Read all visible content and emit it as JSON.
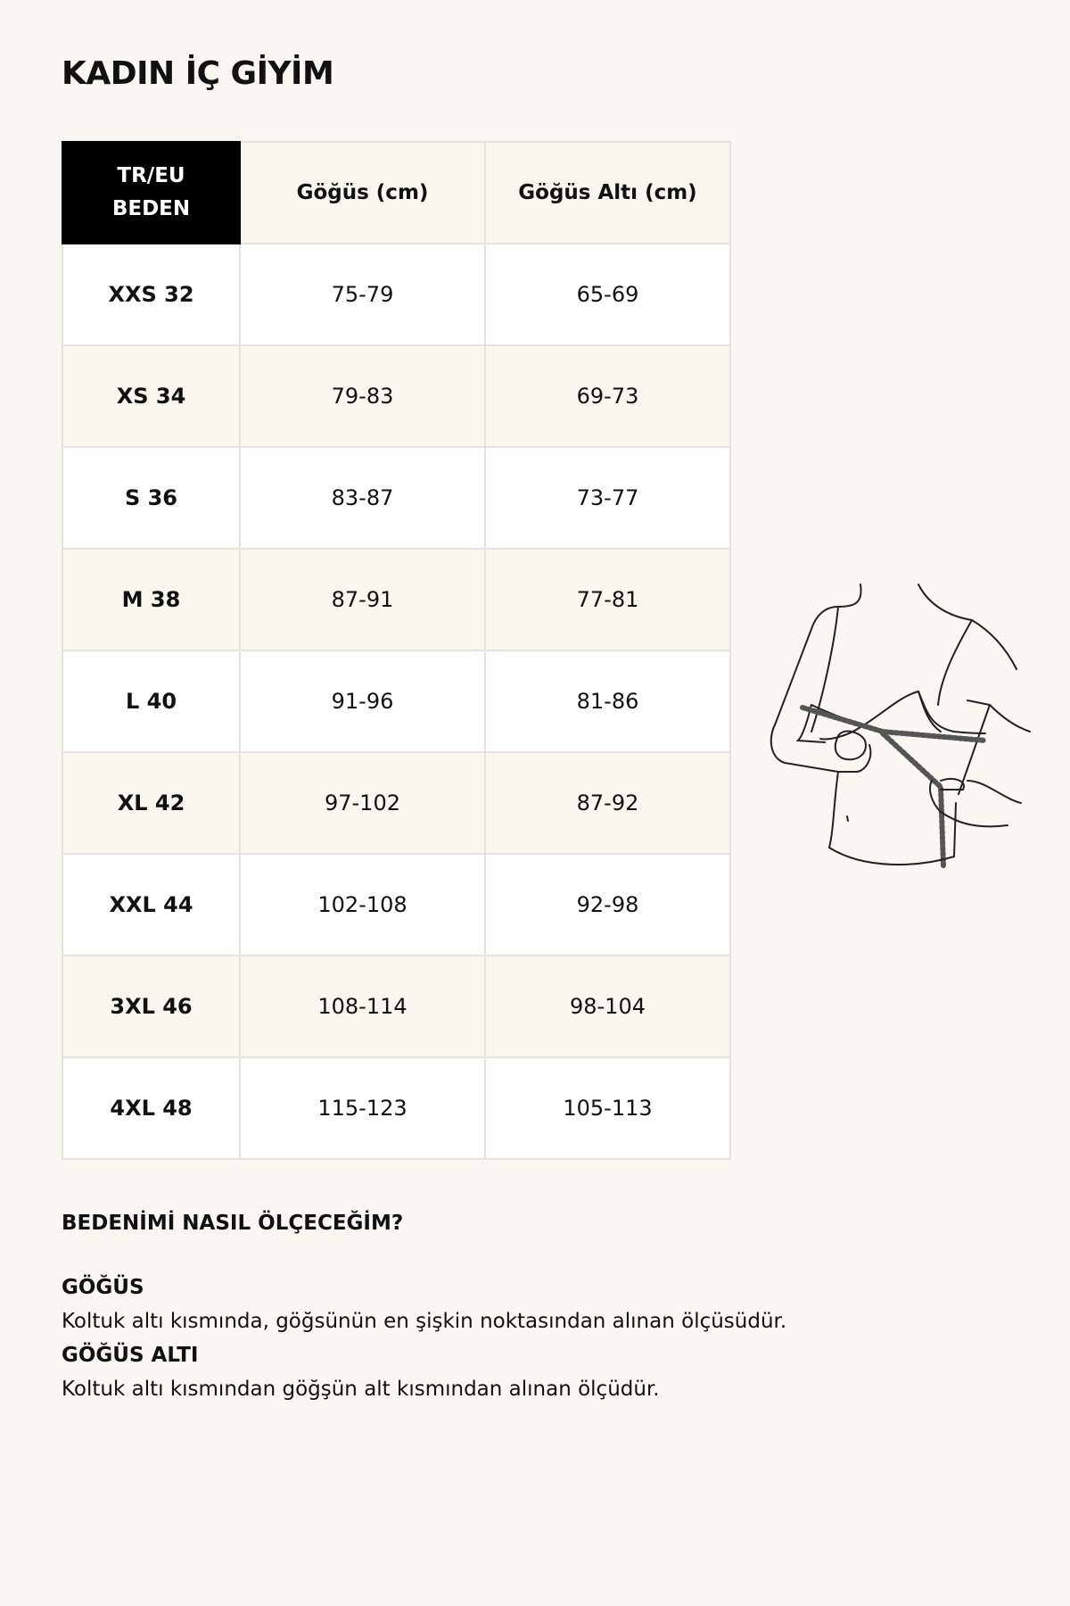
{
  "title": "KADIN İÇ GİYİM",
  "table": {
    "headers": [
      "TR/EU",
      "BEDEN",
      "Göğüs (cm)",
      "Göğüs Altı (cm)"
    ],
    "rows": [
      [
        "XXS 32",
        "75-79",
        "65-69"
      ],
      [
        "XS 34",
        "79-83",
        "69-73"
      ],
      [
        "S 36",
        "83-87",
        "73-77"
      ],
      [
        "M 38",
        "87-91",
        "77-81"
      ],
      [
        "L 40",
        "91-96",
        "81-86"
      ],
      [
        "XL 42",
        "97-102",
        "87-92"
      ],
      [
        "XXL 44",
        "102-108",
        "92-98"
      ],
      [
        "3XL 46",
        "108-114",
        "98-104"
      ],
      [
        "4XL 48",
        "115-123",
        "105-113"
      ]
    ]
  },
  "illustration": "bust-measurement-icon",
  "guide": {
    "heading": "BEDENİMİ NASIL ÖLÇECEĞİM?",
    "sections": [
      {
        "title": "GÖĞÜS",
        "text": "Koltuk altı kısmında, göğsünün en şişkin noktasından alınan ölçüsüdür."
      },
      {
        "title": "GÖĞÜS ALTI",
        "text": "Koltuk altı kısmından göğşün alt kısmından alınan ölçüdür."
      }
    ]
  },
  "colors": {
    "background": "#faf6f1",
    "header_black": "#000000",
    "row_alt": "#f9f5ef",
    "border": "#e6e2dc"
  }
}
